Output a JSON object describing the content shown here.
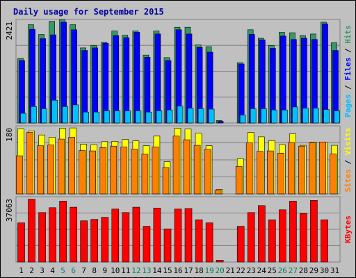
{
  "chart_data": {
    "type": "bar",
    "title": "Daily usage for September 2015",
    "days": [
      "1",
      "2",
      "3",
      "4",
      "5",
      "6",
      "7",
      "8",
      "9",
      "10",
      "11",
      "12",
      "13",
      "14",
      "15",
      "16",
      "17",
      "18",
      "19",
      "20",
      "21",
      "22",
      "23",
      "24",
      "25",
      "26",
      "27",
      "28",
      "29",
      "30",
      "31"
    ],
    "weekend_days": [
      "5",
      "6",
      "12",
      "13",
      "19",
      "20",
      "26",
      "27"
    ],
    "panels": [
      {
        "ymax_label": "2421",
        "ymax": 2421,
        "axis_labels": [
          "Pages",
          "Files",
          "Hits"
        ],
        "series": [
          {
            "name": "Hits",
            "color": "#339966",
            "values": [
              1530,
              2330,
              2100,
              2410,
              2450,
              2330,
              1780,
              1840,
              1910,
              2180,
              2080,
              2180,
              1610,
              2180,
              1550,
              2270,
              2270,
              1850,
              1810,
              60,
              0,
              1430,
              2210,
              2010,
              1840,
              2150,
              2140,
              2070,
              2110,
              2390,
              1900
            ]
          },
          {
            "name": "Files",
            "color": "#0000ff",
            "values": [
              1480,
              2220,
              2000,
              2090,
              2390,
              2210,
              1720,
              1780,
              1890,
              2070,
              2020,
              2150,
              1560,
              2110,
              1480,
              2210,
              2110,
              1790,
              1680,
              40,
              0,
              1400,
              2100,
              1970,
              1770,
              2060,
              1980,
              2010,
              1980,
              2350,
              1720
            ]
          },
          {
            "name": "Pages",
            "color": "#00c0ff",
            "values": [
              230,
              390,
              340,
              540,
              390,
              430,
              260,
              260,
              290,
              290,
              290,
              290,
              260,
              290,
              310,
              400,
              350,
              340,
              330,
              0,
              0,
              190,
              340,
              340,
              310,
              310,
              380,
              350,
              350,
              320,
              290
            ]
          }
        ]
      },
      {
        "ymax_label": "180",
        "ymax": 180,
        "axis_labels": [
          "Sites",
          "Visits"
        ],
        "series": [
          {
            "name": "Visits",
            "color": "#ffff00",
            "values": [
              176,
              170,
              159,
              153,
              177,
              178,
              134,
              133,
              141,
              142,
              147,
              143,
              130,
              156,
              87,
              177,
              175,
              164,
              130,
              12,
              0,
              95,
              166,
              154,
              144,
              133,
              162,
              131,
              140,
              139,
              131
            ]
          },
          {
            "name": "Sites",
            "color": "#ff8000",
            "values": [
              103,
              166,
              130,
              132,
              148,
              153,
              117,
              116,
              125,
              129,
              127,
              121,
              107,
              127,
              71,
              156,
              146,
              131,
              120,
              10,
              0,
              74,
              138,
              115,
              116,
              110,
              139,
              129,
              138,
              140,
              108
            ]
          }
        ]
      },
      {
        "ymax_label": "37063",
        "ymax": 37063,
        "axis_labels": [
          "KBytes"
        ],
        "series": [
          {
            "name": "KBytes",
            "color": "#ff0000",
            "values": [
              22700,
              36400,
              28700,
              31500,
              35300,
              31800,
              23900,
              24700,
              25900,
              30700,
              28700,
              31800,
              20700,
              31300,
              19200,
              30700,
              31000,
              24500,
              22700,
              1100,
              0,
              20700,
              28700,
              32700,
              24500,
              30300,
              35300,
              28100,
              35700,
              24500,
              0
            ]
          }
        ]
      }
    ]
  }
}
